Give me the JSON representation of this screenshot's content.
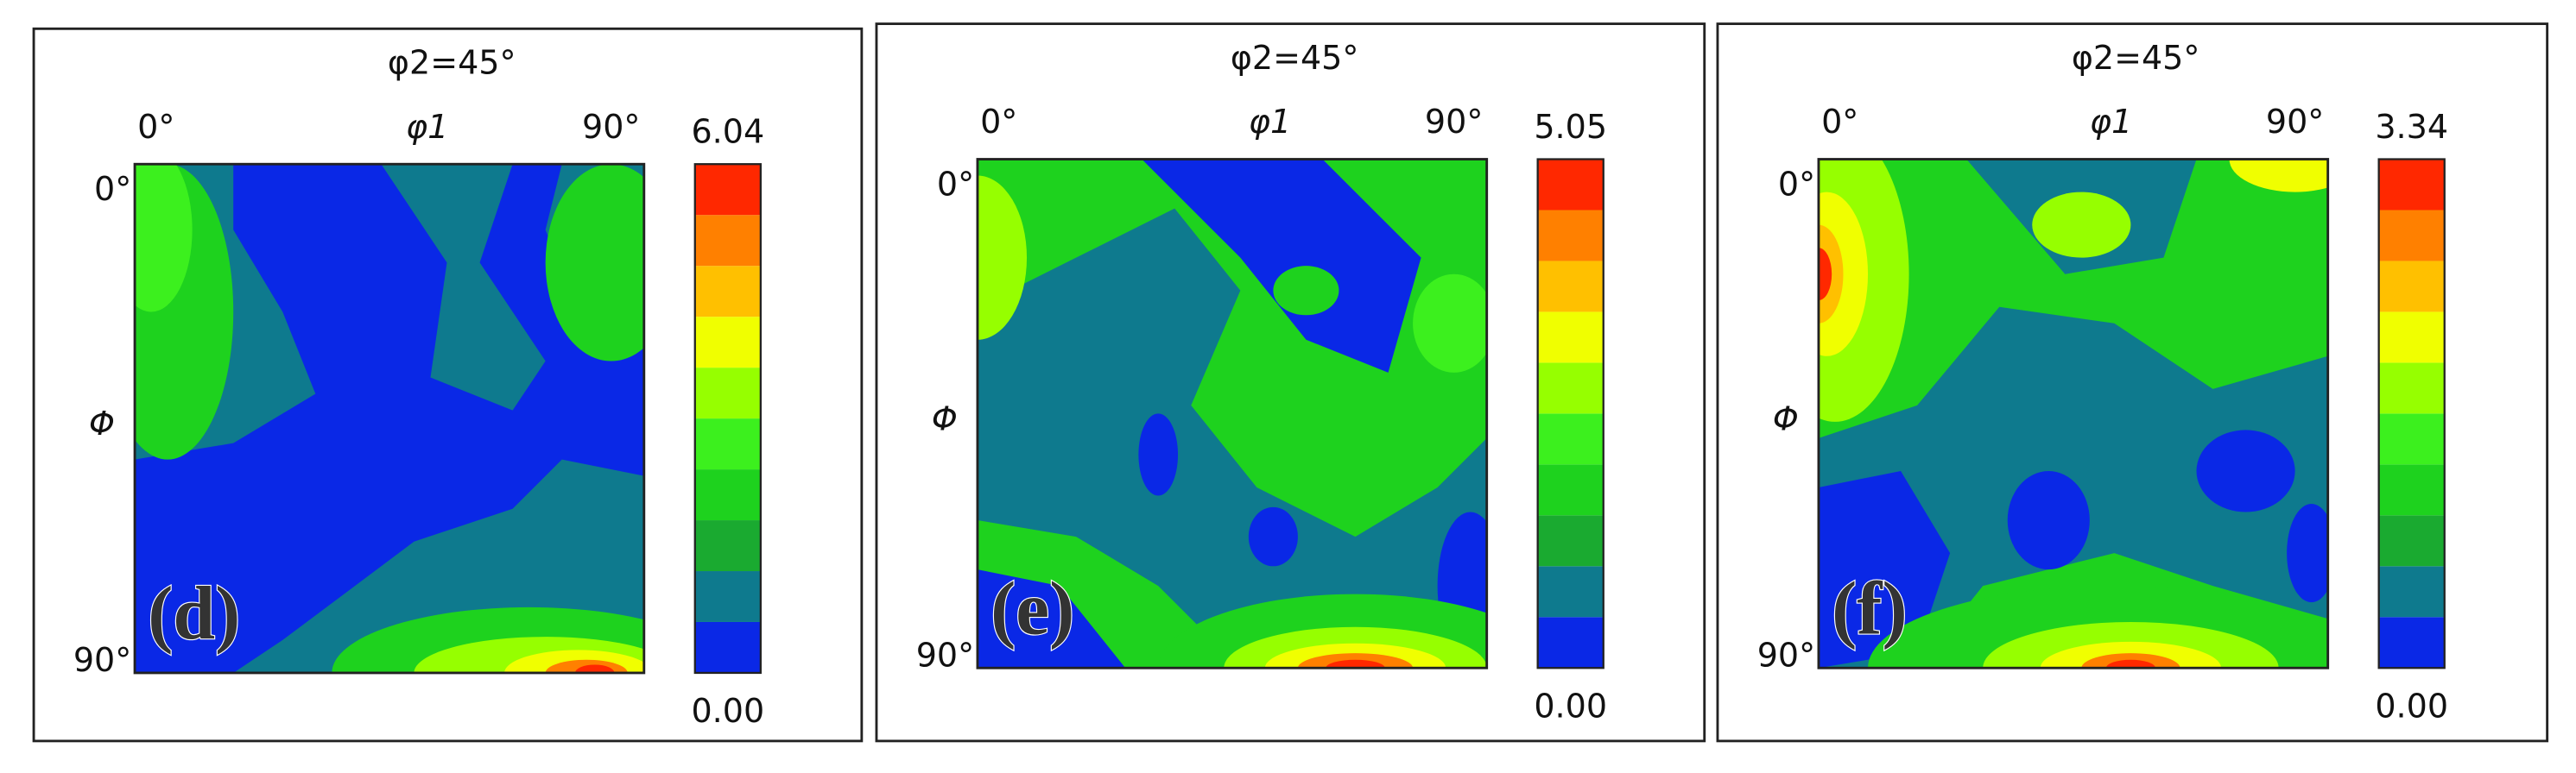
{
  "panels": [
    {
      "title": "φ2=45°",
      "x_start": "0°",
      "x_label": "φ1",
      "x_end": "90°",
      "y_start": "0°",
      "y_label": "Φ",
      "y_end": "90°",
      "scale_max": "6.04",
      "scale_min": "0.00",
      "label": "(d)"
    },
    {
      "title": "φ2=45°",
      "x_start": "0°",
      "x_label": "φ1",
      "x_end": "90°",
      "y_start": "0°",
      "y_label": "Φ",
      "y_end": "90°",
      "scale_max": "5.05",
      "scale_min": "0.00",
      "label": "(e)"
    },
    {
      "title": "φ2=45°",
      "x_start": "0°",
      "x_label": "φ1",
      "x_end": "90°",
      "y_start": "0°",
      "y_label": "Φ",
      "y_end": "90°",
      "scale_max": "3.34",
      "scale_min": "0.00",
      "label": "(f)"
    }
  ]
}
